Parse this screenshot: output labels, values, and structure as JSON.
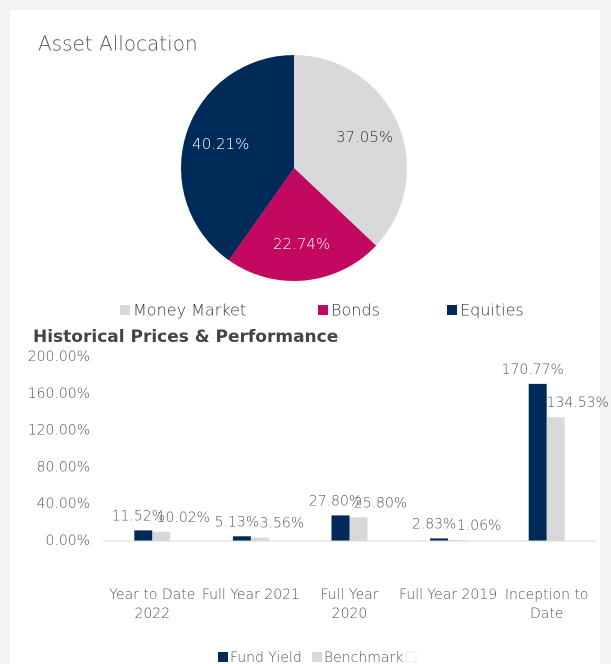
{
  "chart_data": [
    {
      "type": "pie",
      "title": "Asset Allocation",
      "categories": [
        "Money Market",
        "Bonds",
        "Equities"
      ],
      "values": [
        37.05,
        22.74,
        40.21
      ],
      "value_labels": [
        "37.05%",
        "22.74%",
        "40.21%"
      ],
      "colors": [
        "#d9d9dc",
        "#c2095f",
        "#002b59"
      ],
      "label_colors": [
        "#333333",
        "#ffffff",
        "#ffffff"
      ],
      "legend": "bottom"
    },
    {
      "type": "bar",
      "title": "Historical Prices & Performance",
      "categories": [
        [
          "Year to Date",
          "2022"
        ],
        [
          "Full Year 2021"
        ],
        [
          "Full Year",
          "2020"
        ],
        [
          "Full Year 2019"
        ],
        [
          "Inception to",
          "Date"
        ]
      ],
      "series": [
        {
          "name": "Fund Yield",
          "color": "#002b59",
          "values": [
            11.52,
            5.13,
            27.8,
            2.83,
            170.77
          ],
          "value_labels": [
            "11.52%",
            "5.13%",
            "27.80%",
            "2.83%",
            "170.77%"
          ]
        },
        {
          "name": "Benchmark",
          "color": "#d9d9dc",
          "values": [
            10.02,
            3.56,
            25.8,
            1.06,
            134.53
          ],
          "value_labels": [
            "10.02%",
            "3.56%",
            "25.80%",
            "1.06%",
            "134.53%"
          ]
        }
      ],
      "ylim": [
        0,
        200
      ],
      "yticks": [
        {
          "value": 0,
          "label": "0.00%"
        },
        {
          "value": 40,
          "label": "40.00%"
        },
        {
          "value": 80,
          "label": "80.00%"
        },
        {
          "value": 120,
          "label": "120.00%"
        },
        {
          "value": 160,
          "label": "160.00%"
        },
        {
          "value": 200,
          "label": "200.00%"
        }
      ],
      "grid": false,
      "legend": "bottom"
    }
  ]
}
